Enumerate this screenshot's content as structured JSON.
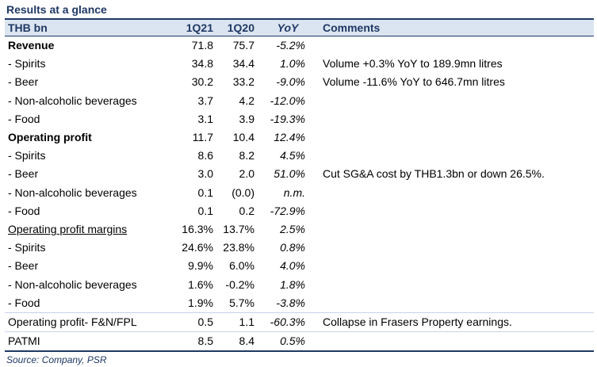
{
  "title": "Results at a glance",
  "header": {
    "label": "THB bn",
    "q21": "1Q21",
    "q20": "1Q20",
    "yoy": "YoY",
    "comments": "Comments"
  },
  "rows": [
    {
      "label": "Revenue",
      "q21": "71.8",
      "q20": "75.7",
      "yoy": "-5.2%",
      "comment": ""
    },
    {
      "label": " - Spirits",
      "q21": "34.8",
      "q20": "34.4",
      "yoy": "1.0%",
      "comment": "Volume +0.3% YoY to 189.9mn litres"
    },
    {
      "label": " - Beer",
      "q21": "30.2",
      "q20": "33.2",
      "yoy": "-9.0%",
      "comment": "Volume -11.6% YoY to 646.7mn litres"
    },
    {
      "label": " - Non-alcoholic beverages",
      "q21": "3.7",
      "q20": "4.2",
      "yoy": "-12.0%",
      "comment": ""
    },
    {
      "label": " - Food",
      "q21": "3.1",
      "q20": "3.9",
      "yoy": "-19.3%",
      "comment": ""
    },
    {
      "label": "Operating profit",
      "q21": "11.7",
      "q20": "10.4",
      "yoy": "12.4%",
      "comment": ""
    },
    {
      "label": " - Spirits",
      "q21": "8.6",
      "q20": "8.2",
      "yoy": "4.5%",
      "comment": ""
    },
    {
      "label": " - Beer",
      "q21": "3.0",
      "q20": "2.0",
      "yoy": "51.0%",
      "comment": "Cut SG&A cost by THB1.3bn or down 26.5%."
    },
    {
      "label": " - Non-alcoholic beverages",
      "q21": "0.1",
      "q20": "(0.0)",
      "yoy": "n.m.",
      "comment": ""
    },
    {
      "label": " - Food",
      "q21": "0.1",
      "q20": "0.2",
      "yoy": "-72.9%",
      "comment": ""
    },
    {
      "label": "Operating profit margins",
      "q21": "16.3%",
      "q20": "13.7%",
      "yoy": "2.5%",
      "comment": ""
    },
    {
      "label": " - Spirits",
      "q21": "24.6%",
      "q20": "23.8%",
      "yoy": "0.8%",
      "comment": ""
    },
    {
      "label": " - Beer",
      "q21": "9.9%",
      "q20": "6.0%",
      "yoy": "4.0%",
      "comment": ""
    },
    {
      "label": " - Non-alcoholic beverages",
      "q21": "1.6%",
      "q20": "-0.2%",
      "yoy": "1.8%",
      "comment": ""
    },
    {
      "label": " - Food",
      "q21": "1.9%",
      "q20": "5.7%",
      "yoy": "-3.8%",
      "comment": ""
    },
    {
      "label": "Operating profit- F&N/FPL",
      "q21": "0.5",
      "q20": "1.1",
      "yoy": "-60.3%",
      "comment": "Collapse in Frasers Property earnings."
    },
    {
      "label": "PATMI",
      "q21": "8.5",
      "q20": "8.4",
      "yoy": "0.5%",
      "comment": ""
    }
  ],
  "source": "Source: Company, PSR",
  "colors": {
    "heading_text": "#1f3864",
    "header_fill": "#dbe5f1"
  }
}
